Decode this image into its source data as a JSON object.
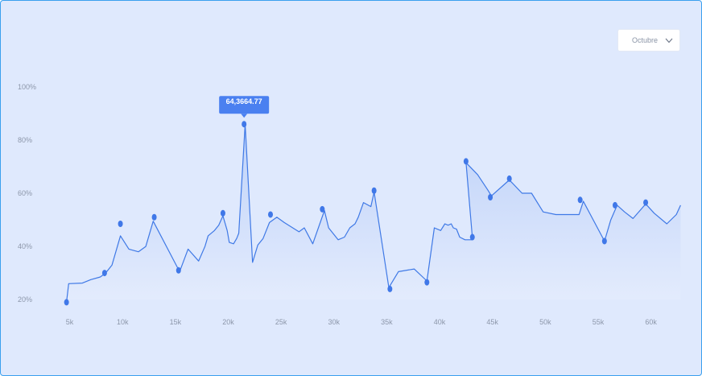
{
  "dropdown": {
    "selected": "Octubre"
  },
  "colors": {
    "line": "#3f79e6",
    "marker": "#4078e8",
    "tooltip": "#4a80f0",
    "background": "#dfe9fd",
    "area_top": "#bcd0f8"
  },
  "chart_data": {
    "type": "area",
    "title": "",
    "xlabel": "",
    "ylabel": "",
    "xlim": [
      4500,
      63000
    ],
    "ylim": [
      17,
      100
    ],
    "x_ticks": [
      5000,
      10000,
      15000,
      20000,
      25000,
      30000,
      35000,
      40000,
      45000,
      50000,
      55000,
      60000
    ],
    "x_tick_labels": [
      "5k",
      "10k",
      "15k",
      "20k",
      "25k",
      "30k",
      "35k",
      "40k",
      "45k",
      "50k",
      "55k",
      "60k"
    ],
    "y_ticks": [
      20,
      40,
      60,
      80,
      100
    ],
    "y_tick_labels": [
      "20%",
      "40%",
      "60%",
      "80%",
      "100%"
    ],
    "grid": false,
    "series": [
      {
        "points": [
          [
            4700,
            19
          ],
          [
            4900,
            26
          ],
          [
            6200,
            26.2
          ],
          [
            7000,
            27.5
          ],
          [
            7900,
            28.5
          ],
          [
            8400,
            30
          ],
          [
            9000,
            33
          ],
          [
            9800,
            44
          ],
          [
            10600,
            39
          ],
          [
            11500,
            38
          ],
          [
            12200,
            40
          ],
          [
            12900,
            49.5
          ],
          [
            15400,
            30.5
          ],
          [
            16200,
            39
          ],
          [
            17200,
            34.5
          ],
          [
            17800,
            40
          ],
          [
            18100,
            44
          ],
          [
            18700,
            46
          ],
          [
            19100,
            48
          ],
          [
            19500,
            51.5
          ],
          [
            19900,
            46
          ],
          [
            20100,
            41.5
          ],
          [
            20500,
            41
          ],
          [
            20800,
            43
          ],
          [
            21000,
            45
          ],
          [
            21600,
            86
          ],
          [
            22300,
            34
          ],
          [
            22800,
            40.5
          ],
          [
            23300,
            43
          ],
          [
            23900,
            49
          ],
          [
            24600,
            51
          ],
          [
            25300,
            49
          ],
          [
            26700,
            45.5
          ],
          [
            27200,
            47
          ],
          [
            28000,
            41
          ],
          [
            29100,
            53.5
          ],
          [
            29500,
            47
          ],
          [
            30400,
            42.5
          ],
          [
            31000,
            43.5
          ],
          [
            31500,
            47
          ],
          [
            32000,
            48.5
          ],
          [
            32300,
            51
          ],
          [
            32800,
            56.5
          ],
          [
            33500,
            55
          ],
          [
            33800,
            60.5
          ],
          [
            35200,
            24.5
          ],
          [
            36100,
            30.5
          ],
          [
            37600,
            31.5
          ],
          [
            38800,
            27
          ],
          [
            39500,
            47
          ],
          [
            40100,
            46
          ],
          [
            40500,
            48.5
          ],
          [
            40800,
            48
          ],
          [
            41100,
            48.5
          ],
          [
            41300,
            47
          ],
          [
            41600,
            46.5
          ],
          [
            41900,
            43.5
          ],
          [
            42400,
            42.5
          ],
          [
            43100,
            42.5
          ],
          [
            43100,
            43.5
          ],
          [
            42500,
            71.5
          ],
          [
            43600,
            67
          ],
          [
            44600,
            61
          ],
          [
            44900,
            59
          ],
          [
            46600,
            65
          ],
          [
            47800,
            60
          ],
          [
            48700,
            60
          ],
          [
            49800,
            53
          ],
          [
            51000,
            52
          ],
          [
            53200,
            52
          ],
          [
            53600,
            57
          ],
          [
            55600,
            42
          ],
          [
            56200,
            50
          ],
          [
            56800,
            55.5
          ],
          [
            57500,
            53
          ],
          [
            58300,
            50.5
          ],
          [
            59500,
            56
          ],
          [
            60300,
            52.5
          ],
          [
            61500,
            48.5
          ],
          [
            62400,
            52
          ],
          [
            62800,
            55.5
          ]
        ],
        "markers": [
          [
            4700,
            19
          ],
          [
            8300,
            30
          ],
          [
            9800,
            48.5
          ],
          [
            13000,
            51
          ],
          [
            15300,
            31
          ],
          [
            19500,
            52.5
          ],
          [
            21500,
            86
          ],
          [
            24000,
            52
          ],
          [
            28900,
            54
          ],
          [
            33800,
            61
          ],
          [
            35300,
            24
          ],
          [
            38800,
            26.5
          ],
          [
            42500,
            72
          ],
          [
            43100,
            43.5
          ],
          [
            44800,
            58.5
          ],
          [
            46600,
            65.5
          ],
          [
            53300,
            57.5
          ],
          [
            55600,
            42
          ],
          [
            56600,
            55.5
          ],
          [
            59500,
            56.5
          ]
        ]
      }
    ],
    "annotations": [
      {
        "text": "64,3664.77",
        "x": 21500,
        "y": 86
      }
    ]
  }
}
